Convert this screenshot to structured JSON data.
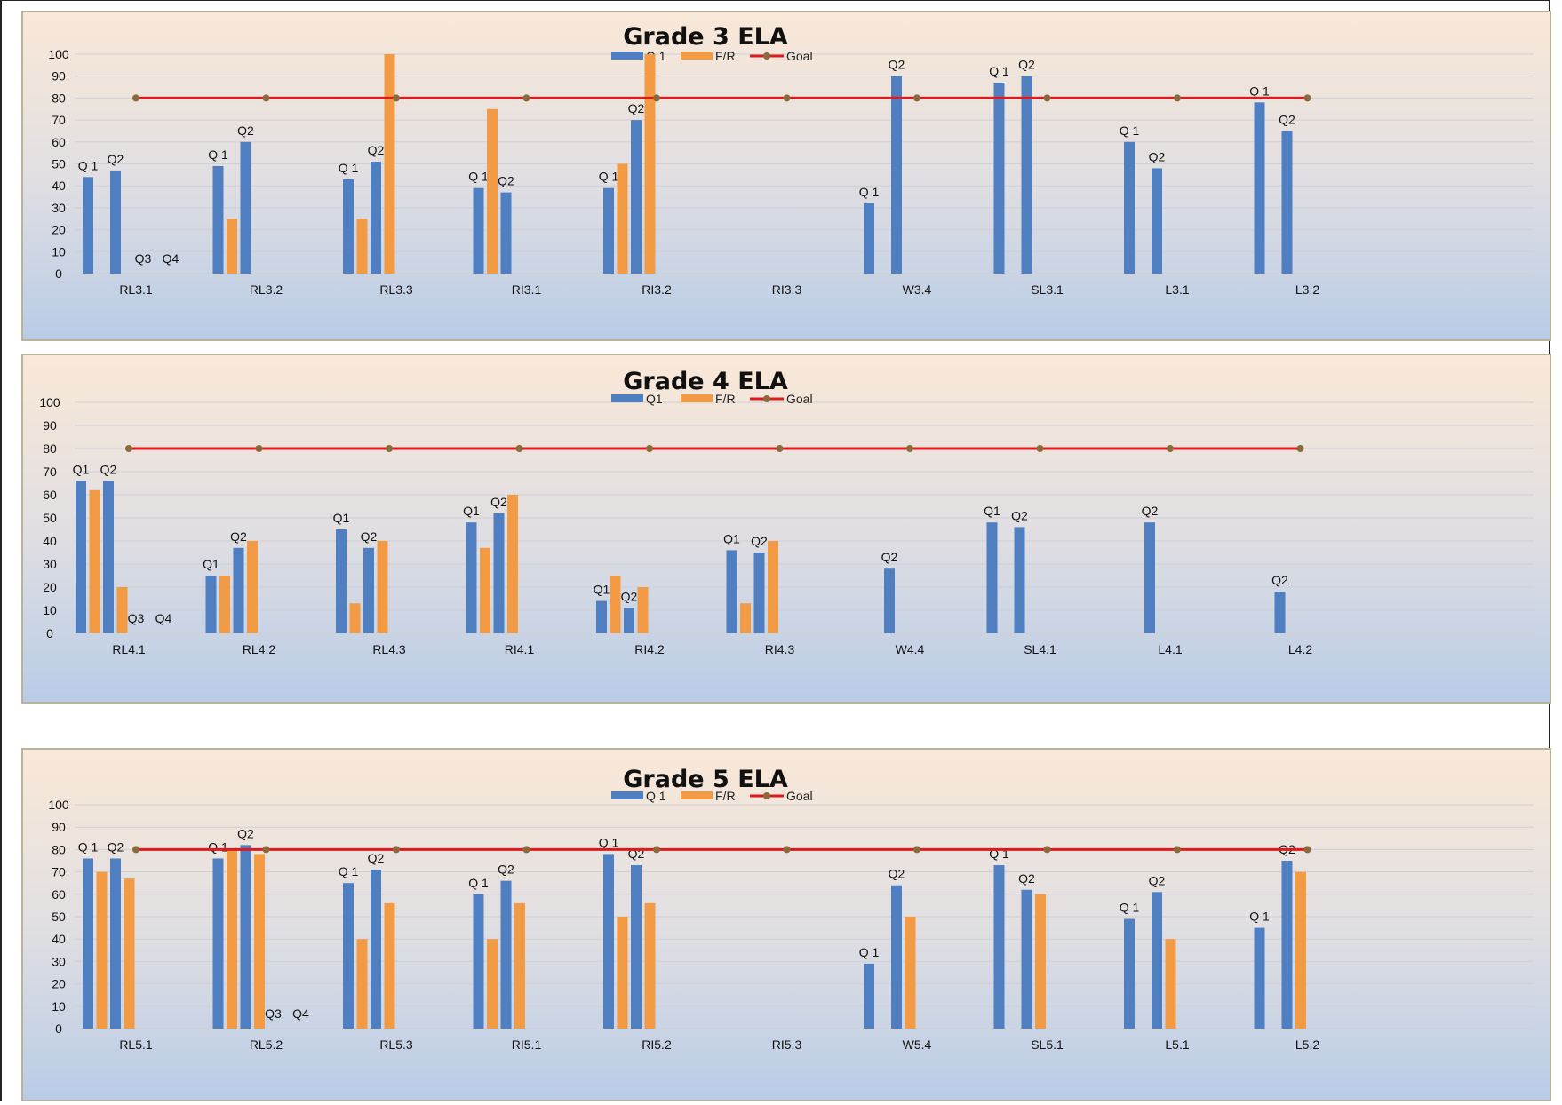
{
  "colors": {
    "q1": "#4f7ec1",
    "fr": "#f39a45",
    "goal": "#e0191f",
    "goal_marker": "#8a6a3a"
  },
  "chart_data": [
    {
      "type": "bar",
      "title": "Grade 3 ELA",
      "legend": [
        "Q 1",
        "F/R",
        "Goal"
      ],
      "ylim": [
        0,
        100
      ],
      "yticks": [
        0,
        10,
        20,
        30,
        40,
        50,
        60,
        70,
        80,
        90,
        100
      ],
      "goal": 80,
      "categories": [
        "RL3.1",
        "RL3.2",
        "RL3.3",
        "RI3.1",
        "RI3.2",
        "RI3.3",
        "W3.4",
        "SL3.1",
        "L3.1",
        "L3.2"
      ],
      "groups": [
        {
          "category": "RL3.1",
          "bars": [
            {
              "series": "Q 1",
              "value": 44,
              "label": "Q 1"
            },
            {
              "series": "F/R",
              "value": null
            },
            {
              "series": "Q 1",
              "value": 47,
              "label": "Q2"
            },
            {
              "series": "F/R",
              "value": null
            },
            {
              "series": "Q 1",
              "value": null,
              "label": "Q3"
            },
            {
              "series": "F/R",
              "value": null
            },
            {
              "series": "Q 1",
              "value": null,
              "label": "Q4"
            }
          ]
        },
        {
          "category": "RL3.2",
          "bars": [
            {
              "series": "Q 1",
              "value": 49,
              "label": "Q 1"
            },
            {
              "series": "F/R",
              "value": 25
            },
            {
              "series": "Q 1",
              "value": 60,
              "label": "Q2"
            },
            {
              "series": "F/R",
              "value": null
            }
          ]
        },
        {
          "category": "RL3.3",
          "bars": [
            {
              "series": "Q 1",
              "value": 43,
              "label": "Q 1"
            },
            {
              "series": "F/R",
              "value": 25
            },
            {
              "series": "Q 1",
              "value": 51,
              "label": "Q2"
            },
            {
              "series": "F/R",
              "value": 100
            }
          ]
        },
        {
          "category": "RI3.1",
          "bars": [
            {
              "series": "Q 1",
              "value": 39,
              "label": "Q 1"
            },
            {
              "series": "F/R",
              "value": 75
            },
            {
              "series": "Q 1",
              "value": 37,
              "label": "Q2"
            },
            {
              "series": "F/R",
              "value": null
            }
          ]
        },
        {
          "category": "RI3.2",
          "bars": [
            {
              "series": "Q 1",
              "value": 39,
              "label": "Q 1"
            },
            {
              "series": "F/R",
              "value": 50
            },
            {
              "series": "Q 1",
              "value": 70,
              "label": "Q2"
            },
            {
              "series": "F/R",
              "value": 100
            }
          ]
        },
        {
          "category": "RI3.3",
          "bars": []
        },
        {
          "category": "W3.4",
          "bars": [
            {
              "series": "Q 1",
              "value": 32,
              "label": "Q 1"
            },
            {
              "series": "F/R",
              "value": null
            },
            {
              "series": "Q 1",
              "value": 90,
              "label": "Q2"
            },
            {
              "series": "F/R",
              "value": null
            }
          ]
        },
        {
          "category": "SL3.1",
          "bars": [
            {
              "series": "Q 1",
              "value": 87,
              "label": "Q 1"
            },
            {
              "series": "F/R",
              "value": null
            },
            {
              "series": "Q 1",
              "value": 90,
              "label": "Q2"
            },
            {
              "series": "F/R",
              "value": null
            }
          ]
        },
        {
          "category": "L3.1",
          "bars": [
            {
              "series": "Q 1",
              "value": 60,
              "label": "Q 1"
            },
            {
              "series": "F/R",
              "value": null
            },
            {
              "series": "Q 1",
              "value": 48,
              "label": "Q2"
            },
            {
              "series": "F/R",
              "value": null
            }
          ]
        },
        {
          "category": "L3.2",
          "bars": [
            {
              "series": "Q 1",
              "value": 78,
              "label": "Q 1"
            },
            {
              "series": "F/R",
              "value": null
            },
            {
              "series": "Q 1",
              "value": 65,
              "label": "Q2"
            },
            {
              "series": "F/R",
              "value": null
            }
          ]
        }
      ]
    },
    {
      "type": "bar",
      "title": "Grade 4 ELA",
      "legend": [
        "Q1",
        "F/R",
        "Goal"
      ],
      "ylim": [
        0,
        100
      ],
      "yticks": [
        0,
        10,
        20,
        30,
        40,
        50,
        60,
        70,
        80,
        90,
        100
      ],
      "goal": 80,
      "categories": [
        "RL4.1",
        "RL4.2",
        "RL4.3",
        "RI4.1",
        "RI4.2",
        "RI4.3",
        "W4.4",
        "SL4.1",
        "L4.1",
        "L4.2"
      ],
      "groups": [
        {
          "category": "RL4.1",
          "bars": [
            {
              "series": "Q1",
              "value": 66,
              "label": "Q1"
            },
            {
              "series": "F/R",
              "value": 62
            },
            {
              "series": "Q1",
              "value": 66,
              "label": "Q2"
            },
            {
              "series": "F/R",
              "value": 20
            },
            {
              "series": "Q1",
              "value": null,
              "label": "Q3"
            },
            {
              "series": "F/R",
              "value": null
            },
            {
              "series": "Q1",
              "value": null,
              "label": "Q4"
            }
          ]
        },
        {
          "category": "RL4.2",
          "bars": [
            {
              "series": "Q1",
              "value": 25,
              "label": "Q1"
            },
            {
              "series": "F/R",
              "value": 25
            },
            {
              "series": "Q1",
              "value": 37,
              "label": "Q2"
            },
            {
              "series": "F/R",
              "value": 40
            }
          ]
        },
        {
          "category": "RL4.3",
          "bars": [
            {
              "series": "Q1",
              "value": 45,
              "label": "Q1"
            },
            {
              "series": "F/R",
              "value": 13
            },
            {
              "series": "Q1",
              "value": 37,
              "label": "Q2"
            },
            {
              "series": "F/R",
              "value": 40
            }
          ]
        },
        {
          "category": "RI4.1",
          "bars": [
            {
              "series": "Q1",
              "value": 48,
              "label": "Q1"
            },
            {
              "series": "F/R",
              "value": 37
            },
            {
              "series": "Q1",
              "value": 52,
              "label": "Q2"
            },
            {
              "series": "F/R",
              "value": 60
            }
          ]
        },
        {
          "category": "RI4.2",
          "bars": [
            {
              "series": "Q1",
              "value": 14,
              "label": "Q1"
            },
            {
              "series": "F/R",
              "value": 25
            },
            {
              "series": "Q1",
              "value": 11,
              "label": "Q2"
            },
            {
              "series": "F/R",
              "value": 20
            }
          ]
        },
        {
          "category": "RI4.3",
          "bars": [
            {
              "series": "Q1",
              "value": 36,
              "label": "Q1"
            },
            {
              "series": "F/R",
              "value": 13
            },
            {
              "series": "Q1",
              "value": 35,
              "label": "Q2"
            },
            {
              "series": "F/R",
              "value": 40
            }
          ]
        },
        {
          "category": "W4.4",
          "bars": [
            {
              "series": "Q1",
              "value": null
            },
            {
              "series": "F/R",
              "value": null
            },
            {
              "series": "Q1",
              "value": 28,
              "label": "Q2"
            },
            {
              "series": "F/R",
              "value": null
            }
          ]
        },
        {
          "category": "SL4.1",
          "bars": [
            {
              "series": "Q1",
              "value": 48,
              "label": "Q1"
            },
            {
              "series": "F/R",
              "value": null
            },
            {
              "series": "Q1",
              "value": 46,
              "label": "Q2"
            },
            {
              "series": "F/R",
              "value": null
            }
          ]
        },
        {
          "category": "L4.1",
          "bars": [
            {
              "series": "Q1",
              "value": null
            },
            {
              "series": "F/R",
              "value": null
            },
            {
              "series": "Q1",
              "value": 48,
              "label": "Q2"
            },
            {
              "series": "F/R",
              "value": null
            }
          ]
        },
        {
          "category": "L4.2",
          "bars": [
            {
              "series": "Q1",
              "value": null
            },
            {
              "series": "F/R",
              "value": null
            },
            {
              "series": "Q1",
              "value": 18,
              "label": "Q2"
            },
            {
              "series": "F/R",
              "value": null
            }
          ]
        }
      ]
    },
    {
      "type": "bar",
      "title": "Grade 5 ELA",
      "legend": [
        "Q 1",
        "F/R",
        "Goal"
      ],
      "ylim": [
        0,
        100
      ],
      "yticks": [
        0,
        10,
        20,
        30,
        40,
        50,
        60,
        70,
        80,
        90,
        100
      ],
      "goal": 80,
      "categories": [
        "RL5.1",
        "RL5.2",
        "RL5.3",
        "RI5.1",
        "RI5.2",
        "RI5.3",
        "W5.4",
        "SL5.1",
        "L5.1",
        "L5.2"
      ],
      "groups": [
        {
          "category": "RL5.1",
          "bars": [
            {
              "series": "Q 1",
              "value": 76,
              "label": "Q 1"
            },
            {
              "series": "F/R",
              "value": 70
            },
            {
              "series": "Q 1",
              "value": 76,
              "label": "Q2"
            },
            {
              "series": "F/R",
              "value": 67
            }
          ]
        },
        {
          "category": "RL5.2",
          "bars": [
            {
              "series": "Q 1",
              "value": 76,
              "label": "Q 1"
            },
            {
              "series": "F/R",
              "value": 80
            },
            {
              "series": "Q 1",
              "value": 82,
              "label": "Q2"
            },
            {
              "series": "F/R",
              "value": 78
            },
            {
              "series": "Q 1",
              "value": null,
              "label": "Q3"
            },
            {
              "series": "F/R",
              "value": null
            },
            {
              "series": "Q 1",
              "value": null,
              "label": "Q4"
            }
          ]
        },
        {
          "category": "RL5.3",
          "bars": [
            {
              "series": "Q 1",
              "value": 65,
              "label": "Q 1"
            },
            {
              "series": "F/R",
              "value": 40
            },
            {
              "series": "Q 1",
              "value": 71,
              "label": "Q2"
            },
            {
              "series": "F/R",
              "value": 56
            }
          ]
        },
        {
          "category": "RI5.1",
          "bars": [
            {
              "series": "Q 1",
              "value": 60,
              "label": "Q 1"
            },
            {
              "series": "F/R",
              "value": 40
            },
            {
              "series": "Q 1",
              "value": 66,
              "label": "Q2"
            },
            {
              "series": "F/R",
              "value": 56
            }
          ]
        },
        {
          "category": "RI5.2",
          "bars": [
            {
              "series": "Q 1",
              "value": 78,
              "label": "Q 1"
            },
            {
              "series": "F/R",
              "value": 50
            },
            {
              "series": "Q 1",
              "value": 73,
              "label": "Q2"
            },
            {
              "series": "F/R",
              "value": 56
            }
          ]
        },
        {
          "category": "RI5.3",
          "bars": []
        },
        {
          "category": "W5.4",
          "bars": [
            {
              "series": "Q 1",
              "value": 29,
              "label": "Q 1"
            },
            {
              "series": "F/R",
              "value": null
            },
            {
              "series": "Q 1",
              "value": 64,
              "label": "Q2"
            },
            {
              "series": "F/R",
              "value": 50
            }
          ]
        },
        {
          "category": "SL5.1",
          "bars": [
            {
              "series": "Q 1",
              "value": 73,
              "label": "Q 1"
            },
            {
              "series": "F/R",
              "value": null
            },
            {
              "series": "Q 1",
              "value": 62,
              "label": "Q2"
            },
            {
              "series": "F/R",
              "value": 60
            }
          ]
        },
        {
          "category": "L5.1",
          "bars": [
            {
              "series": "Q 1",
              "value": 49,
              "label": "Q 1"
            },
            {
              "series": "F/R",
              "value": null
            },
            {
              "series": "Q 1",
              "value": 61,
              "label": "Q2"
            },
            {
              "series": "F/R",
              "value": 40
            }
          ]
        },
        {
          "category": "L5.2",
          "bars": [
            {
              "series": "Q 1",
              "value": 45,
              "label": "Q 1"
            },
            {
              "series": "F/R",
              "value": null
            },
            {
              "series": "Q 1",
              "value": 75,
              "label": "Q2"
            },
            {
              "series": "F/R",
              "value": 70
            }
          ]
        }
      ]
    }
  ]
}
